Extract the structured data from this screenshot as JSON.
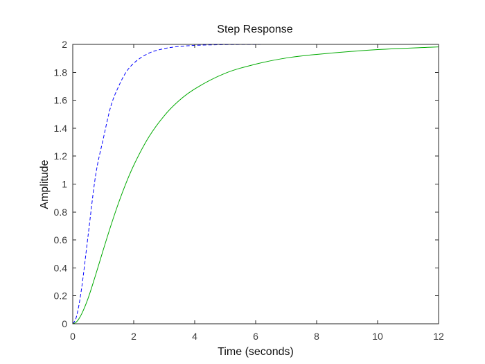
{
  "chart_data": {
    "type": "line",
    "title": "Step Response",
    "xlabel": "Time (seconds)",
    "ylabel": "Amplitude",
    "xlim": [
      0,
      12
    ],
    "ylim": [
      0,
      2
    ],
    "xticks": [
      0,
      2,
      4,
      6,
      8,
      10,
      12
    ],
    "yticks": [
      0,
      0.2,
      0.4,
      0.6,
      0.8,
      1,
      1.2,
      1.4,
      1.6,
      1.8,
      2
    ],
    "xtick_labels": [
      "0",
      "2",
      "4",
      "6",
      "8",
      "10",
      "12"
    ],
    "ytick_labels": [
      "0",
      "0.2",
      "0.4",
      "0.6",
      "0.8",
      "1",
      "1.2",
      "1.4",
      "1.6",
      "1.8",
      "2"
    ],
    "grid": false,
    "reference_line": {
      "y": 2,
      "color": "#000000",
      "style": "dotted"
    },
    "series": [
      {
        "color": "#0000ff",
        "style": "dashed",
        "x": [
          0,
          0.1,
          0.2,
          0.3,
          0.5,
          0.75,
          1.0,
          1.25,
          1.5,
          1.75,
          2.0,
          2.5,
          3.0,
          3.5,
          4.0,
          5.0,
          6.0,
          7.0,
          8.0,
          10.0,
          12.0
        ],
        "y": [
          0,
          0.0353,
          0.1302,
          0.2691,
          0.6253,
          1.0623,
          1.3233,
          1.5577,
          1.6971,
          1.8013,
          1.8647,
          1.9373,
          1.9697,
          1.9855,
          1.9927,
          1.9982,
          1.9996,
          1.9999,
          2.0,
          2.0,
          2.0
        ]
      },
      {
        "color": "#00aa00",
        "style": "solid",
        "x": [
          0,
          0.1,
          0.2,
          0.3,
          0.5,
          0.75,
          1.0,
          1.25,
          1.5,
          1.75,
          2.0,
          2.5,
          3.0,
          3.5,
          4.0,
          5.0,
          6.0,
          7.0,
          8.0,
          10.0,
          12.0
        ],
        "y": [
          0,
          0.0094,
          0.0351,
          0.0741,
          0.1804,
          0.3494,
          0.5284,
          0.7023,
          0.8635,
          1.008,
          1.1341,
          1.3385,
          1.4888,
          1.5998,
          1.6806,
          1.793,
          1.8584,
          1.9023,
          1.928,
          1.9626,
          1.9818
        ]
      }
    ]
  },
  "colors": {
    "axis": "#262626",
    "tick_label": "#3a3a3a"
  }
}
